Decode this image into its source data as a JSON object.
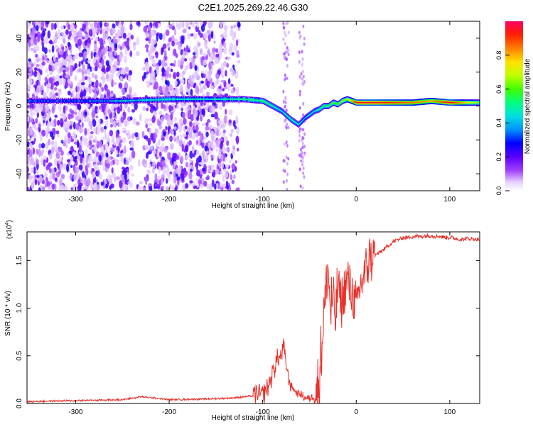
{
  "title": "C2E1.2025.269.22.46.G30",
  "chart_data": [
    {
      "type": "heatmap",
      "name": "spectrogram",
      "xlabel": "Height of straight line (km)",
      "ylabel": "Frequency (Hz)",
      "xlim": [
        -352,
        132
      ],
      "ylim": [
        -50,
        50
      ],
      "xticks": [
        -300,
        -200,
        -100,
        0,
        100
      ],
      "xtick_labels": [
        "-300",
        "-200",
        "-100",
        "0",
        "100"
      ],
      "yticks": [
        -40,
        -20,
        0,
        20,
        40
      ],
      "ytick_labels": [
        "-40",
        "-20",
        "0",
        "20",
        "40"
      ],
      "colorbar": {
        "label": "Normalized spectral amplitude",
        "range": [
          0,
          1
        ],
        "ticks": [
          0.0,
          0.2,
          0.4,
          0.6,
          0.8
        ],
        "tick_labels": [
          "0.0",
          "0.2",
          "0.4",
          "0.6",
          "0.8"
        ]
      },
      "signal_track": {
        "height_km": [
          -352,
          -300,
          -250,
          -200,
          -150,
          -120,
          -100,
          -90,
          -80,
          -70,
          -62,
          -55,
          -50,
          -45,
          -40,
          -35,
          -30,
          -25,
          -20,
          -15,
          -10,
          -5,
          0,
          20,
          40,
          60,
          80,
          100,
          132
        ],
        "frequency_hz": [
          3,
          3,
          3,
          4,
          4,
          4,
          3,
          0,
          -3,
          -8,
          -11,
          -7,
          -5,
          -3,
          -2,
          0,
          0,
          2,
          1,
          3,
          4,
          3,
          2,
          2,
          2,
          2,
          3,
          2,
          2
        ],
        "amplitude": [
          0.3,
          0.3,
          0.4,
          0.45,
          0.45,
          0.5,
          0.55,
          0.5,
          0.45,
          0.5,
          0.45,
          0.4,
          0.45,
          0.45,
          0.5,
          0.55,
          0.55,
          0.6,
          0.6,
          0.65,
          0.65,
          0.8,
          0.95,
          0.95,
          0.9,
          0.85,
          0.8,
          0.95,
          0.6
        ]
      }
    },
    {
      "type": "line",
      "name": "snr",
      "xlabel": "Height of straight line (km)",
      "ylabel": "SNR (10 * v/v)",
      "y_scale_label": "(x10",
      "y_scale_exponent": "4",
      "xlim": [
        -352,
        132
      ],
      "ylim": [
        0,
        1.8
      ],
      "xticks": [
        -300,
        -200,
        -100,
        0,
        100
      ],
      "xtick_labels": [
        "-300",
        "-200",
        "-100",
        "0",
        "100"
      ],
      "yticks": [
        0.0,
        0.5,
        1.0,
        1.5
      ],
      "ytick_labels": [
        "0.0",
        "0.5",
        "1.0",
        "1.5"
      ],
      "color": "#e8302a",
      "series": [
        {
          "name": "SNR",
          "x": [
            -352,
            -300,
            -250,
            -230,
            -200,
            -150,
            -130,
            -110,
            -100,
            -95,
            -90,
            -85,
            -80,
            -78,
            -75,
            -72,
            -70,
            -65,
            -60,
            -55,
            -50,
            -45,
            -40,
            -37,
            -35,
            -32,
            -30,
            -28,
            -25,
            -22,
            -20,
            -15,
            -10,
            -5,
            0,
            5,
            10,
            15,
            20,
            30,
            40,
            50,
            60,
            80,
            100,
            110,
            120,
            132
          ],
          "y": [
            0.02,
            0.03,
            0.04,
            0.07,
            0.04,
            0.05,
            0.06,
            0.08,
            0.1,
            0.15,
            0.3,
            0.45,
            0.5,
            0.6,
            0.42,
            0.25,
            0.2,
            0.12,
            0.1,
            0.06,
            0.05,
            0.08,
            0.2,
            0.6,
            0.9,
            1.2,
            1.45,
            1.0,
            1.1,
            0.9,
            1.25,
            1.05,
            1.3,
            1.2,
            1.0,
            1.25,
            1.4,
            1.55,
            1.55,
            1.62,
            1.7,
            1.74,
            1.75,
            1.76,
            1.74,
            1.72,
            1.73,
            1.72
          ]
        }
      ]
    }
  ]
}
